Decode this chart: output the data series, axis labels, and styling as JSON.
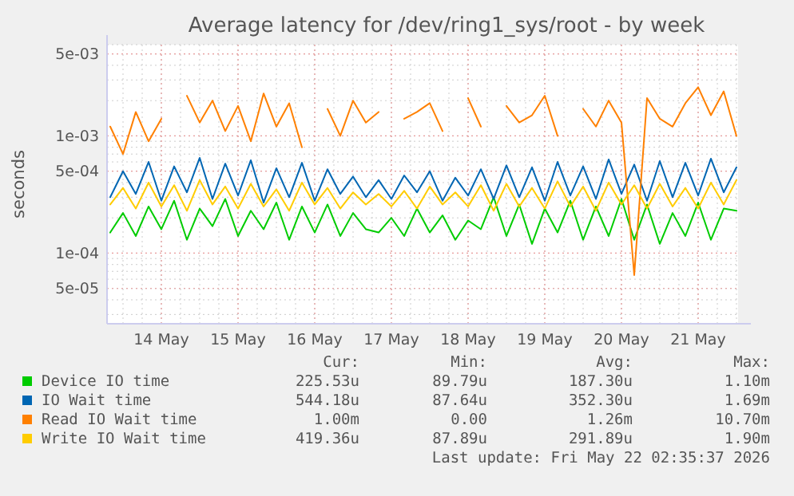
{
  "chart_data": {
    "type": "line",
    "title": "Average latency for /dev/ring1_sys/root - by week",
    "ylabel": "seconds",
    "log": "y",
    "grid": true,
    "legend": "bottom",
    "marker": "none",
    "line_style": "solid",
    "x": [
      "2026-05-13T08:00",
      "2026-05-13T12:00",
      "2026-05-13T16:00",
      "2026-05-13T20:00",
      "2026-05-14T00:00",
      "2026-05-14T04:00",
      "2026-05-14T08:00",
      "2026-05-14T12:00",
      "2026-05-14T16:00",
      "2026-05-14T20:00",
      "2026-05-15T00:00",
      "2026-05-15T04:00",
      "2026-05-15T08:00",
      "2026-05-15T12:00",
      "2026-05-15T16:00",
      "2026-05-15T20:00",
      "2026-05-16T00:00",
      "2026-05-16T04:00",
      "2026-05-16T08:00",
      "2026-05-16T12:00",
      "2026-05-16T16:00",
      "2026-05-16T20:00",
      "2026-05-17T00:00",
      "2026-05-17T04:00",
      "2026-05-17T08:00",
      "2026-05-17T12:00",
      "2026-05-17T16:00",
      "2026-05-17T20:00",
      "2026-05-18T00:00",
      "2026-05-18T04:00",
      "2026-05-18T08:00",
      "2026-05-18T12:00",
      "2026-05-18T16:00",
      "2026-05-18T20:00",
      "2026-05-19T00:00",
      "2026-05-19T04:00",
      "2026-05-19T08:00",
      "2026-05-19T12:00",
      "2026-05-19T16:00",
      "2026-05-19T20:00",
      "2026-05-20T00:00",
      "2026-05-20T04:00",
      "2026-05-20T08:00",
      "2026-05-20T12:00",
      "2026-05-20T16:00",
      "2026-05-20T20:00",
      "2026-05-21T00:00",
      "2026-05-21T04:00",
      "2026-05-21T08:00",
      "2026-05-21T12:00"
    ],
    "xlim": [
      "2026-05-13T07:00",
      "2026-05-21T12:30"
    ],
    "xticks": [
      {
        "value": "2026-05-14",
        "label": "14 May"
      },
      {
        "value": "2026-05-15",
        "label": "15 May"
      },
      {
        "value": "2026-05-16",
        "label": "16 May"
      },
      {
        "value": "2026-05-17",
        "label": "17 May"
      },
      {
        "value": "2026-05-18",
        "label": "18 May"
      },
      {
        "value": "2026-05-19",
        "label": "19 May"
      },
      {
        "value": "2026-05-20",
        "label": "20 May"
      },
      {
        "value": "2026-05-21",
        "label": "21 May"
      }
    ],
    "ylim": [
      2.5e-05,
      0.006
    ],
    "yticks": [
      {
        "value": 5e-05,
        "label": "5e-05"
      },
      {
        "value": 0.0001,
        "label": "1e-04"
      },
      {
        "value": 0.0005,
        "label": "5e-04"
      },
      {
        "value": 0.001,
        "label": "1e-03"
      },
      {
        "value": 0.005,
        "label": "5e-03"
      }
    ],
    "series": [
      {
        "name": "Device IO time",
        "color": "#00cc00",
        "values": [
          0.00015,
          0.00022,
          0.00014,
          0.00025,
          0.00016,
          0.00028,
          0.00013,
          0.00024,
          0.00017,
          0.00029,
          0.00014,
          0.00023,
          0.00016,
          0.00027,
          0.00013,
          0.00025,
          0.00015,
          0.00026,
          0.00014,
          0.00022,
          0.00016,
          0.00015,
          0.0002,
          0.00014,
          0.00024,
          0.00015,
          0.00021,
          0.00013,
          0.00019,
          0.00016,
          0.0003,
          0.00014,
          0.00026,
          0.00012,
          0.00024,
          0.00015,
          0.00028,
          0.00013,
          0.00025,
          0.00014,
          0.00029,
          0.00013,
          0.00026,
          0.00012,
          0.00022,
          0.00014,
          0.00027,
          0.00013,
          0.00024,
          0.00023
        ]
      },
      {
        "name": "IO Wait time",
        "color": "#0066b3",
        "values": [
          0.0003,
          0.0005,
          0.00032,
          0.0006,
          0.00028,
          0.00055,
          0.00033,
          0.00065,
          0.00029,
          0.00058,
          0.00031,
          0.00062,
          0.00027,
          0.00053,
          0.0003,
          0.00059,
          0.00028,
          0.00052,
          0.00032,
          0.00045,
          0.0003,
          0.00042,
          0.00029,
          0.00046,
          0.00033,
          0.0005,
          0.00028,
          0.00044,
          0.00031,
          0.00052,
          0.00029,
          0.00056,
          0.0003,
          0.00054,
          0.00028,
          0.0006,
          0.00031,
          0.00055,
          0.00029,
          0.00063,
          0.00032,
          0.00057,
          0.00028,
          0.00061,
          0.0003,
          0.00059,
          0.00031,
          0.00064,
          0.00033,
          0.00054
        ]
      },
      {
        "name": "Read IO Wait time",
        "color": "#ff8000",
        "values": [
          0.0012,
          0.0007,
          0.0016,
          0.0009,
          0.0014,
          null,
          0.0022,
          0.0013,
          0.002,
          0.0011,
          0.0018,
          0.0009,
          0.0023,
          0.0012,
          0.0019,
          0.0008,
          null,
          0.0017,
          0.001,
          0.002,
          0.0013,
          0.0016,
          null,
          0.0014,
          0.0016,
          0.0019,
          0.0011,
          null,
          0.0021,
          0.0012,
          null,
          0.0018,
          0.0013,
          0.0015,
          0.0022,
          0.001,
          null,
          0.0017,
          0.0012,
          0.002,
          0.0013,
          6.5e-05,
          0.0021,
          0.0014,
          0.0012,
          0.0019,
          0.0026,
          0.0015,
          0.0024,
          0.001
        ]
      },
      {
        "name": "Write IO Wait time",
        "color": "#ffcc00",
        "values": [
          0.00026,
          0.00036,
          0.00024,
          0.0004,
          0.00025,
          0.00038,
          0.00023,
          0.00042,
          0.00026,
          0.00037,
          0.00024,
          0.00039,
          0.00025,
          0.00035,
          0.00023,
          0.0004,
          0.00026,
          0.00036,
          0.00024,
          0.00033,
          0.00026,
          0.00032,
          0.00025,
          0.00034,
          0.00024,
          0.00037,
          0.00026,
          0.00033,
          0.00025,
          0.00038,
          0.00023,
          0.00039,
          0.00025,
          0.00036,
          0.00024,
          0.00041,
          0.00025,
          0.00037,
          0.00023,
          0.0004,
          0.00026,
          0.00038,
          0.00024,
          0.00039,
          0.00025,
          0.00036,
          0.00024,
          0.0004,
          0.00026,
          0.00042
        ]
      }
    ],
    "annotations": [
      "Cur:",
      "Min:",
      "Avg:",
      "Max:",
      "225.53u",
      "89.79u",
      "187.30u",
      "1.10m",
      "544.18u",
      "87.64u",
      "352.30u",
      "1.69m",
      "1.00m",
      "0.00",
      "1.26m",
      "10.70m",
      "419.36u",
      "87.89u",
      "291.89u",
      "1.90m",
      "Last update: Fri May 22 02:35:37 2026"
    ]
  }
}
